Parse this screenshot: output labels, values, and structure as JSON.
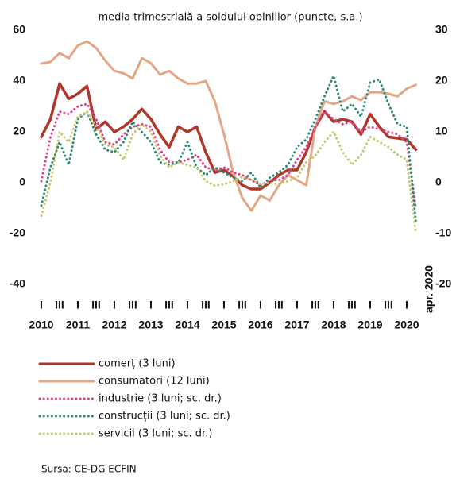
{
  "chart_data": {
    "type": "line",
    "title": "media trimestrială  a soldului opiniilor (puncte, s.a.)",
    "source": "Sursa: CE-DG ECFIN",
    "categories": [
      "I",
      null,
      "III",
      null,
      "I",
      null,
      "III",
      null,
      "I",
      null,
      "III",
      null,
      "I",
      null,
      "III",
      null,
      "I",
      null,
      "III",
      null,
      "I",
      null,
      "III",
      null,
      "I",
      null,
      "III",
      null,
      "I",
      null,
      "III",
      null,
      "I",
      null,
      "III",
      null,
      "I",
      null,
      "III",
      null,
      "I",
      "apr. 2020"
    ],
    "years": [
      "2010",
      "2011",
      "2012",
      "2013",
      "2014",
      "2015",
      "2016",
      "2017",
      "2018",
      "2019",
      "2020"
    ],
    "ylim": [
      -40,
      60
    ],
    "yticks": [
      -40,
      -20,
      0,
      20,
      40,
      60
    ],
    "y2lim": [
      -20,
      30
    ],
    "y2ticks": [
      -20,
      -10,
      0,
      10,
      20,
      30
    ],
    "series": [
      {
        "name": "comerț (3 luni)",
        "color": "#b0362a",
        "style": "solid",
        "values": [
          18,
          25,
          39,
          33,
          35,
          38,
          21,
          24,
          20,
          22,
          25,
          29,
          25,
          19,
          14,
          22,
          20,
          22,
          12,
          4,
          5,
          2.5,
          -1,
          -2.5,
          -2.5,
          0,
          3,
          5,
          5,
          12,
          22,
          28,
          24,
          25,
          24,
          19,
          27,
          22,
          18,
          17.5,
          17,
          13
        ]
      },
      {
        "name": "consumatori (12 luni)",
        "color": "#e3a687",
        "style": "solid",
        "values": [
          46.9,
          47.5,
          51,
          49,
          54,
          55.6,
          53,
          48,
          44,
          43,
          41,
          49,
          47,
          42.5,
          44,
          41,
          39,
          39,
          40,
          32,
          19,
          4,
          -6,
          -11,
          -5,
          -7,
          -1,
          3,
          1,
          -1,
          22,
          32,
          31,
          32,
          34,
          32.5,
          35.6,
          35.6,
          35,
          34,
          37,
          38.5
        ]
      },
      {
        "name": "industrie (3 luni; sc. dr.)",
        "color": "#e0408a",
        "style": "dotted",
        "axis": "y2",
        "values": [
          0.3,
          9,
          14,
          13.5,
          15,
          15.5,
          12.5,
          8,
          7.5,
          9.5,
          11,
          11.5,
          11,
          6.5,
          4,
          4,
          4.5,
          5.5,
          3,
          2.5,
          3,
          2,
          1.5,
          0.5,
          -0.5,
          0.5,
          0.5,
          1.5,
          4.5,
          7,
          11,
          14,
          12.5,
          11.5,
          12,
          10,
          11,
          10.5,
          10,
          9.5,
          8,
          -5
        ]
      },
      {
        "name": "construcții (3 luni; sc. dr.)",
        "color": "#2e8b7a",
        "style": "dotted",
        "axis": "y2",
        "values": [
          -4.5,
          3,
          8,
          3.5,
          12.5,
          14,
          9.5,
          6.5,
          6,
          8,
          12,
          10,
          8,
          4,
          3.5,
          4,
          8,
          3,
          1.5,
          3,
          2,
          1,
          0.3,
          2,
          -1,
          1,
          2,
          3.5,
          7,
          8.5,
          12.5,
          17,
          21,
          14,
          15.5,
          13,
          19.7,
          20.3,
          15.5,
          11.5,
          11,
          -8
        ]
      },
      {
        "name": "servicii (3 luni; sc. dr.)",
        "color": "#c8c870",
        "style": "dotted",
        "axis": "y2",
        "values": [
          -6.5,
          0,
          10,
          8,
          13,
          14,
          11,
          7.5,
          7,
          4.5,
          9.5,
          11.5,
          10,
          5.3,
          3,
          4,
          3.5,
          3,
          0.3,
          -0.6,
          -0.3,
          0.3,
          1.2,
          0.6,
          -0.3,
          0,
          -0.3,
          0.3,
          1,
          4,
          5.3,
          8,
          10,
          6,
          3.5,
          5.5,
          9,
          8,
          7,
          5.5,
          4.5,
          -10
        ]
      }
    ]
  }
}
